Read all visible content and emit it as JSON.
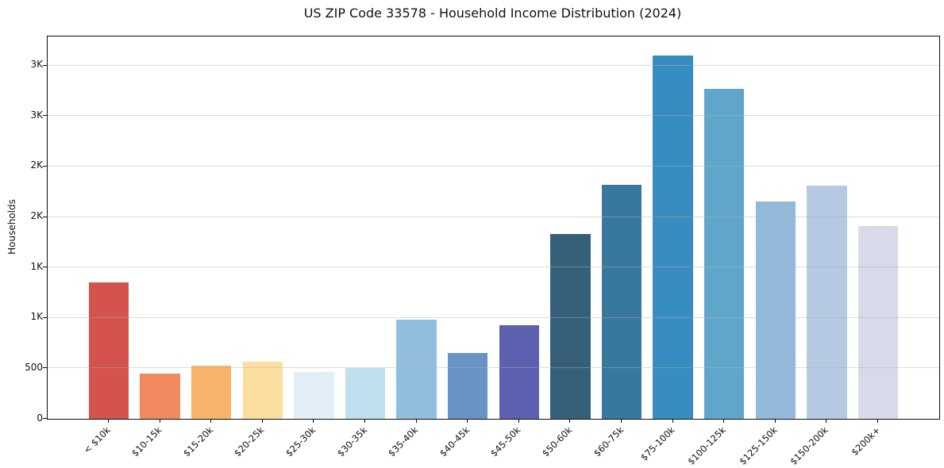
{
  "chart_data": {
    "type": "bar",
    "title": "US ZIP Code 33578 - Household Income Distribution (2024)",
    "xlabel": "",
    "ylabel": "Households",
    "categories": [
      "< $10k",
      "$10-15k",
      "$15-20k",
      "$20-25k",
      "$25-30k",
      "$30-35k",
      "$35-40k",
      "$40-45k",
      "$45-50k",
      "$50-60k",
      "$60-75k",
      "$75-100k",
      "$100-125k",
      "$125-150k",
      "$150-200k",
      "$200k+"
    ],
    "values": [
      1350,
      445,
      525,
      565,
      460,
      500,
      985,
      650,
      925,
      1830,
      2320,
      3600,
      3270,
      2150,
      2310,
      1910
    ],
    "bar_colors": [
      "#d5534d",
      "#f1895f",
      "#f9b36c",
      "#fcdf9e",
      "#e2eff6",
      "#bfe0ee",
      "#91bedf",
      "#6893c4",
      "#5c60ae",
      "#36607a",
      "#37789e",
      "#388dc0",
      "#5fa6ca",
      "#93b9da",
      "#b6c9e3",
      "#d7dae8"
    ],
    "ylim": [
      0,
      3788
    ],
    "yticks": {
      "values": [
        0,
        500,
        1000,
        1500,
        2000,
        2500,
        3000,
        3500
      ],
      "labels": [
        "0",
        "500",
        "1K",
        "1K",
        "2K",
        "2K",
        "3K",
        "3K"
      ]
    },
    "grid": {
      "axis": "y",
      "visible": true
    },
    "legend": "none",
    "x_tick_rotation": 45,
    "bar_count": 16
  },
  "style": {
    "background": "#ffffff",
    "spine_color": "#0c0c0c",
    "grid_color": "#b0b0b0",
    "text_color": "#111111"
  }
}
